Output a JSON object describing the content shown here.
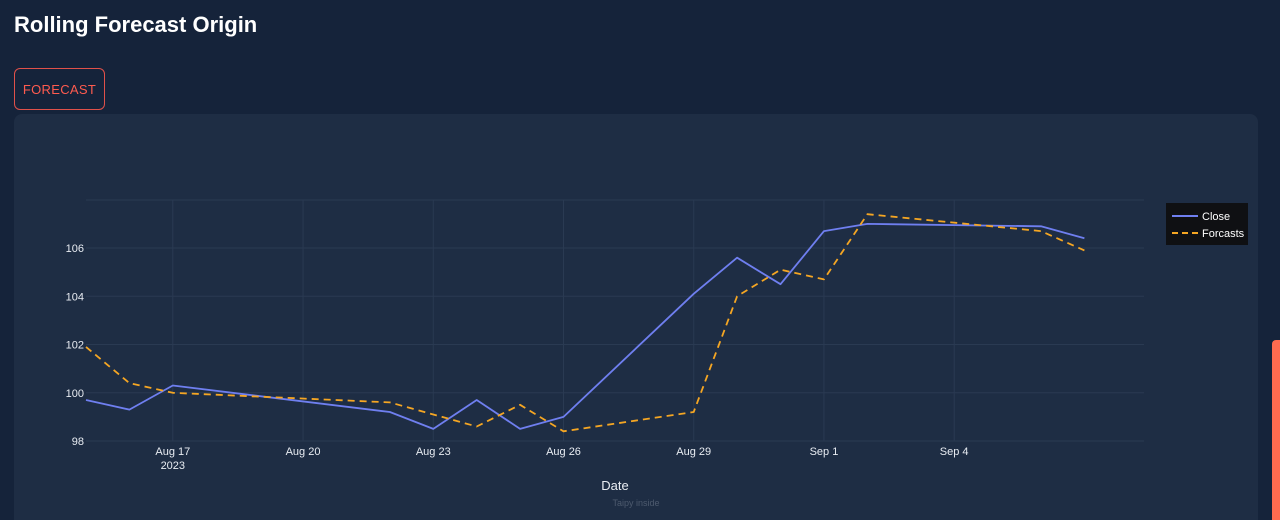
{
  "page": {
    "title": "Rolling Forecast Origin"
  },
  "actions": {
    "forecast_label": "FORECAST"
  },
  "colors": {
    "background": "#15233a",
    "panel": "#1e2d44",
    "accent": "#ff5b4f",
    "close_line": "#6f7ff0",
    "forecast_line": "#f5a623",
    "scrollbar": "#ff6b4f"
  },
  "footer": {
    "watermark": "Taipy inside"
  },
  "chart_data": {
    "type": "line",
    "xlabel": "Date",
    "ylabel": "",
    "x_range": [
      "2023-08-15",
      "2023-09-06"
    ],
    "ylim": [
      98,
      108
    ],
    "grid": true,
    "legend_position": "top-right",
    "x_ticks": [
      {
        "date": "2023-08-17",
        "label": "Aug 17",
        "sublabel": "2023"
      },
      {
        "date": "2023-08-20",
        "label": "Aug 20",
        "sublabel": ""
      },
      {
        "date": "2023-08-23",
        "label": "Aug 23",
        "sublabel": ""
      },
      {
        "date": "2023-08-26",
        "label": "Aug 26",
        "sublabel": ""
      },
      {
        "date": "2023-08-29",
        "label": "Aug 29",
        "sublabel": ""
      },
      {
        "date": "2023-09-01",
        "label": "Sep 1",
        "sublabel": ""
      },
      {
        "date": "2023-09-04",
        "label": "Sep 4",
        "sublabel": ""
      }
    ],
    "y_ticks": [
      98,
      100,
      102,
      104,
      106
    ],
    "series": [
      {
        "name": "Close",
        "style": "solid",
        "color": "#6f7ff0",
        "points": [
          {
            "x": "2023-08-15",
            "y": 99.7
          },
          {
            "x": "2023-08-16",
            "y": 99.3
          },
          {
            "x": "2023-08-17",
            "y": 100.3
          },
          {
            "x": "2023-08-22",
            "y": 99.2
          },
          {
            "x": "2023-08-23",
            "y": 98.5
          },
          {
            "x": "2023-08-24",
            "y": 99.7
          },
          {
            "x": "2023-08-25",
            "y": 98.5
          },
          {
            "x": "2023-08-26",
            "y": 99.0
          },
          {
            "x": "2023-08-29",
            "y": 104.1
          },
          {
            "x": "2023-08-30",
            "y": 105.6
          },
          {
            "x": "2023-08-31",
            "y": 104.5
          },
          {
            "x": "2023-09-01",
            "y": 106.7
          },
          {
            "x": "2023-09-02",
            "y": 107.0
          },
          {
            "x": "2023-09-06",
            "y": 106.9
          },
          {
            "x": "2023-09-07",
            "y": 106.4
          }
        ]
      },
      {
        "name": "Forcasts",
        "style": "dashed",
        "color": "#f5a623",
        "points": [
          {
            "x": "2023-08-15",
            "y": 101.9
          },
          {
            "x": "2023-08-16",
            "y": 100.4
          },
          {
            "x": "2023-08-17",
            "y": 100.0
          },
          {
            "x": "2023-08-22",
            "y": 99.6
          },
          {
            "x": "2023-08-23",
            "y": 99.1
          },
          {
            "x": "2023-08-24",
            "y": 98.6
          },
          {
            "x": "2023-08-25",
            "y": 99.5
          },
          {
            "x": "2023-08-26",
            "y": 98.4
          },
          {
            "x": "2023-08-29",
            "y": 99.2
          },
          {
            "x": "2023-08-30",
            "y": 104.0
          },
          {
            "x": "2023-08-31",
            "y": 105.1
          },
          {
            "x": "2023-09-01",
            "y": 104.7
          },
          {
            "x": "2023-09-02",
            "y": 107.4
          },
          {
            "x": "2023-09-06",
            "y": 106.7
          },
          {
            "x": "2023-09-07",
            "y": 105.9
          }
        ]
      }
    ]
  }
}
